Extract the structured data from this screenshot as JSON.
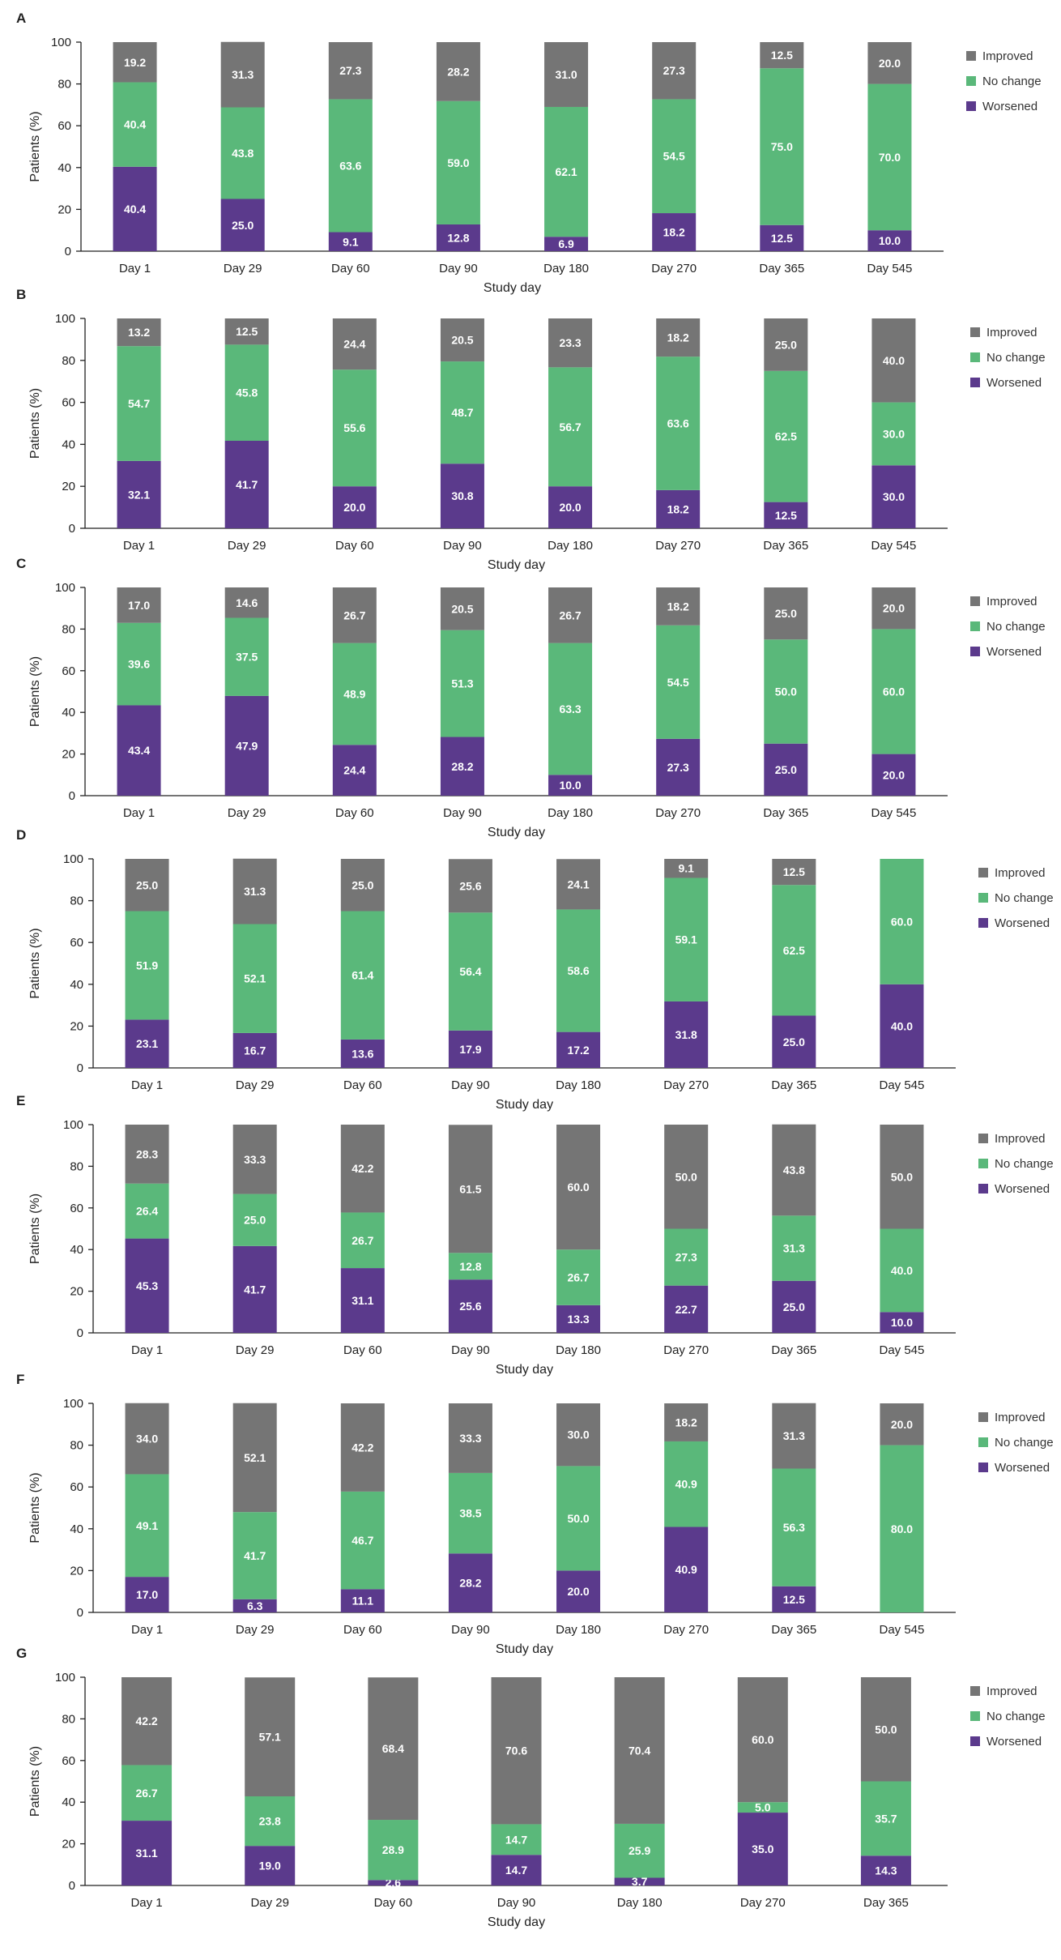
{
  "colors": {
    "improved": "#757575",
    "no_change": "#5ab87a",
    "worsened": "#5b3a8c"
  },
  "legend": [
    "Improved",
    "No change",
    "Worsened"
  ],
  "chart_data": [
    {
      "type": "bar",
      "stacked": true,
      "panel": "A",
      "categories": [
        "Day 1",
        "Day 29",
        "Day 60",
        "Day 90",
        "Day 180",
        "Day 270",
        "Day 365",
        "Day 545"
      ],
      "xlabel": "Study day",
      "ylabel": "Patients (%)",
      "ylim": [
        0,
        100
      ],
      "yticks": [
        0,
        20,
        40,
        60,
        80,
        100
      ],
      "legend_position": "right",
      "series": [
        {
          "name": "Worsened",
          "values": [
            40.4,
            25.0,
            9.1,
            12.8,
            6.9,
            18.2,
            12.5,
            10.0
          ],
          "labels": [
            "40.4",
            "25.0",
            "9.1",
            "12.8",
            "6.9",
            "18.2",
            "12.5",
            "10.0"
          ]
        },
        {
          "name": "No change",
          "values": [
            40.4,
            43.8,
            63.6,
            59.0,
            62.1,
            54.5,
            75.0,
            70.0
          ],
          "labels": [
            "40.4",
            "43.8",
            "63.6",
            "59.0",
            "62.1",
            "54.5",
            "75.0",
            "70.0"
          ]
        },
        {
          "name": "Improved",
          "values": [
            19.2,
            31.3,
            27.3,
            28.2,
            31.0,
            27.3,
            12.5,
            20.0
          ],
          "labels": [
            "19.2",
            "31.3",
            "27.3",
            "28.2",
            "31.0",
            "27.3",
            "12.5",
            "20.0"
          ]
        }
      ]
    },
    {
      "type": "bar",
      "stacked": true,
      "panel": "B",
      "categories": [
        "Day 1",
        "Day 29",
        "Day 60",
        "Day 90",
        "Day 180",
        "Day 270",
        "Day 365",
        "Day 545"
      ],
      "xlabel": "Study day",
      "ylabel": "Patients (%)",
      "ylim": [
        0,
        100
      ],
      "yticks": [
        0,
        20,
        40,
        60,
        80,
        100
      ],
      "legend_position": "right",
      "series": [
        {
          "name": "Worsened",
          "values": [
            32.1,
            41.7,
            20.0,
            30.8,
            20.0,
            18.2,
            12.5,
            30.0
          ],
          "labels": [
            "32.1",
            "41.7",
            "20.0",
            "30.8",
            "20.0",
            "18.2",
            "12.5",
            "30.0"
          ]
        },
        {
          "name": "No change",
          "values": [
            54.7,
            45.8,
            55.6,
            48.7,
            56.7,
            63.6,
            62.5,
            30.0
          ],
          "labels": [
            "54.7",
            "45.8",
            "55.6",
            "48.7",
            "56.7",
            "63.6",
            "62.5",
            "30.0"
          ]
        },
        {
          "name": "Improved",
          "values": [
            13.2,
            12.5,
            24.4,
            20.5,
            23.3,
            18.2,
            25.0,
            40.0
          ],
          "labels": [
            "13.2",
            "12.5",
            "24.4",
            "20.5",
            "23.3",
            "18.2",
            "25.0",
            "40.0"
          ]
        }
      ]
    },
    {
      "type": "bar",
      "stacked": true,
      "panel": "C",
      "categories": [
        "Day 1",
        "Day 29",
        "Day 60",
        "Day 90",
        "Day 180",
        "Day 270",
        "Day 365",
        "Day 545"
      ],
      "xlabel": "Study day",
      "ylabel": "Patients (%)",
      "ylim": [
        0,
        100
      ],
      "yticks": [
        0,
        20,
        40,
        60,
        80,
        100
      ],
      "legend_position": "right",
      "series": [
        {
          "name": "Worsened",
          "values": [
            43.4,
            47.9,
            24.4,
            28.2,
            10.0,
            27.3,
            25.0,
            20.0
          ],
          "labels": [
            "43.4",
            "47.9",
            "24.4",
            "28.2",
            "10.0",
            "27.3",
            "25.0",
            "20.0"
          ]
        },
        {
          "name": "No change",
          "values": [
            39.6,
            37.5,
            48.9,
            51.3,
            63.3,
            54.5,
            50.0,
            60.0
          ],
          "labels": [
            "39.6",
            "37.5",
            "48.9",
            "51.3",
            "63.3",
            "54.5",
            "50.0",
            "60.0"
          ]
        },
        {
          "name": "Improved",
          "values": [
            17.0,
            14.6,
            26.7,
            20.5,
            26.7,
            18.2,
            25.0,
            20.0
          ],
          "labels": [
            "17.0",
            "14.6",
            "26.7",
            "20.5",
            "26.7",
            "18.2",
            "25.0",
            "20.0"
          ]
        }
      ]
    },
    {
      "type": "bar",
      "stacked": true,
      "panel": "D",
      "categories": [
        "Day 1",
        "Day 29",
        "Day 60",
        "Day 90",
        "Day 180",
        "Day 270",
        "Day 365",
        "Day 545"
      ],
      "xlabel": "Study day",
      "ylabel": "Patients (%)",
      "ylim": [
        0,
        100
      ],
      "yticks": [
        0,
        20,
        40,
        60,
        80,
        100
      ],
      "legend_position": "right",
      "series": [
        {
          "name": "Worsened",
          "values": [
            23.1,
            16.7,
            13.6,
            17.9,
            17.2,
            31.8,
            25.0,
            40.0
          ],
          "labels": [
            "23.1",
            "16.7",
            "13.6",
            "17.9",
            "17.2",
            "31.8",
            "25.0",
            "40.0"
          ]
        },
        {
          "name": "No change",
          "values": [
            51.9,
            52.1,
            61.4,
            56.4,
            58.6,
            59.1,
            62.5,
            60.0
          ],
          "labels": [
            "51.9",
            "52.1",
            "61.4",
            "56.4",
            "58.6",
            "59.1",
            "62.5",
            "60.0"
          ]
        },
        {
          "name": "Improved",
          "values": [
            25.0,
            31.3,
            25.0,
            25.6,
            24.1,
            9.1,
            12.5,
            0
          ],
          "labels": [
            "25.0",
            "31.3",
            "25.0",
            "25.6",
            "24.1",
            "9.1",
            "12.5",
            ""
          ]
        }
      ]
    },
    {
      "type": "bar",
      "stacked": true,
      "panel": "E",
      "categories": [
        "Day 1",
        "Day 29",
        "Day 60",
        "Day 90",
        "Day 180",
        "Day 270",
        "Day 365",
        "Day 545"
      ],
      "xlabel": "Study day",
      "ylabel": "Patients (%)",
      "ylim": [
        0,
        100
      ],
      "yticks": [
        0,
        20,
        40,
        60,
        80,
        100
      ],
      "legend_position": "right",
      "series": [
        {
          "name": "Worsened",
          "values": [
            45.3,
            41.7,
            31.1,
            25.6,
            13.3,
            22.7,
            25.0,
            10.0
          ],
          "labels": [
            "45.3",
            "41.7",
            "31.1",
            "25.6",
            "13.3",
            "22.7",
            "25.0",
            "10.0"
          ]
        },
        {
          "name": "No change",
          "values": [
            26.4,
            25.0,
            26.7,
            12.8,
            26.7,
            27.3,
            31.3,
            40.0
          ],
          "labels": [
            "26.4",
            "25.0",
            "26.7",
            "12.8",
            "26.7",
            "27.3",
            "31.3",
            "40.0"
          ]
        },
        {
          "name": "Improved",
          "values": [
            28.3,
            33.3,
            42.2,
            61.5,
            60.0,
            50.0,
            43.8,
            50.0
          ],
          "labels": [
            "28.3",
            "33.3",
            "42.2",
            "61.5",
            "60.0",
            "50.0",
            "43.8",
            "50.0"
          ]
        }
      ]
    },
    {
      "type": "bar",
      "stacked": true,
      "panel": "F",
      "categories": [
        "Day 1",
        "Day 29",
        "Day 60",
        "Day 90",
        "Day 180",
        "Day 270",
        "Day 365",
        "Day 545"
      ],
      "xlabel": "Study day",
      "ylabel": "Patients (%)",
      "ylim": [
        0,
        100
      ],
      "yticks": [
        0,
        20,
        40,
        60,
        80,
        100
      ],
      "legend_position": "right",
      "series": [
        {
          "name": "Worsened",
          "values": [
            17.0,
            6.3,
            11.1,
            28.2,
            20.0,
            40.9,
            12.5,
            0
          ],
          "labels": [
            "17.0",
            "6.3",
            "11.1",
            "28.2",
            "20.0",
            "40.9",
            "12.5",
            ""
          ]
        },
        {
          "name": "No change",
          "values": [
            49.1,
            41.7,
            46.7,
            38.5,
            50.0,
            40.9,
            56.3,
            80.0
          ],
          "labels": [
            "49.1",
            "41.7",
            "46.7",
            "38.5",
            "50.0",
            "40.9",
            "56.3",
            "80.0"
          ]
        },
        {
          "name": "Improved",
          "values": [
            34.0,
            52.1,
            42.2,
            33.3,
            30.0,
            18.2,
            31.3,
            20.0
          ],
          "labels": [
            "34.0",
            "52.1",
            "42.2",
            "33.3",
            "30.0",
            "18.2",
            "31.3",
            "20.0"
          ]
        }
      ]
    },
    {
      "type": "bar",
      "stacked": true,
      "panel": "G",
      "categories": [
        "Day 1",
        "Day 29",
        "Day 60",
        "Day 90",
        "Day 180",
        "Day 270",
        "Day 365"
      ],
      "xlabel": "Study day",
      "ylabel": "Patients (%)",
      "ylim": [
        0,
        100
      ],
      "yticks": [
        0,
        20,
        40,
        60,
        80,
        100
      ],
      "legend_position": "right",
      "series": [
        {
          "name": "Worsened",
          "values": [
            31.1,
            19.0,
            2.6,
            14.7,
            3.7,
            35.0,
            14.3
          ],
          "labels": [
            "31.1",
            "19.0",
            "2.6",
            "14.7",
            "3.7",
            "35.0",
            "14.3"
          ]
        },
        {
          "name": "No change",
          "values": [
            26.7,
            23.8,
            28.9,
            14.7,
            25.9,
            5.0,
            35.7
          ],
          "labels": [
            "26.7",
            "23.8",
            "28.9",
            "14.7",
            "25.9",
            "5.0",
            "35.7"
          ]
        },
        {
          "name": "Improved",
          "values": [
            42.2,
            57.1,
            68.4,
            70.6,
            70.4,
            60.0,
            50.0
          ],
          "labels": [
            "42.2",
            "57.1",
            "68.4",
            "70.6",
            "70.4",
            "60.0",
            "50.0"
          ]
        }
      ]
    }
  ]
}
